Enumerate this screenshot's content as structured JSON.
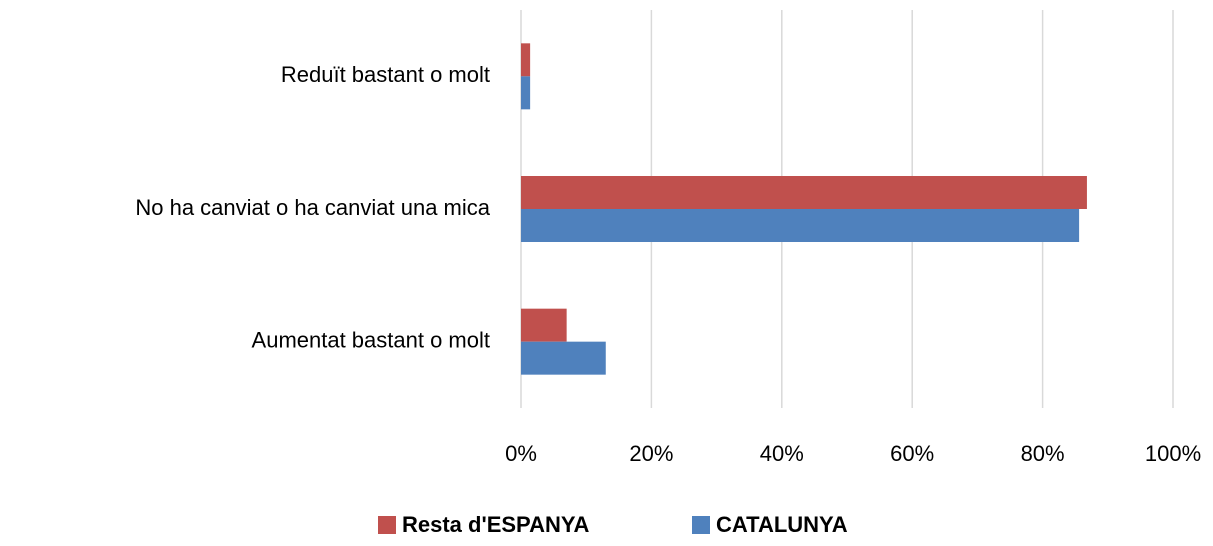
{
  "chart_data": {
    "type": "bar",
    "orientation": "horizontal",
    "categories": [
      "Reduït bastant o molt",
      "No ha canviat o ha canviat una mica",
      "Aumentat bastant o molt"
    ],
    "series": [
      {
        "name": "Resta d'ESPANYA",
        "color": "#c0504d",
        "values": [
          1.4,
          86.8,
          7
        ]
      },
      {
        "name": "CATALUNYA",
        "color": "#4f81bd",
        "values": [
          1.4,
          85.6,
          13
        ]
      }
    ],
    "xlim": [
      0,
      100
    ],
    "xticks": [
      {
        "value": 0,
        "label": "0%"
      },
      {
        "value": 20,
        "label": "20%"
      },
      {
        "value": 40,
        "label": "40%"
      },
      {
        "value": 60,
        "label": "60%"
      },
      {
        "value": 80,
        "label": "80%"
      },
      {
        "value": 100,
        "label": "100%"
      }
    ],
    "grid": true,
    "legend": "bottom"
  }
}
